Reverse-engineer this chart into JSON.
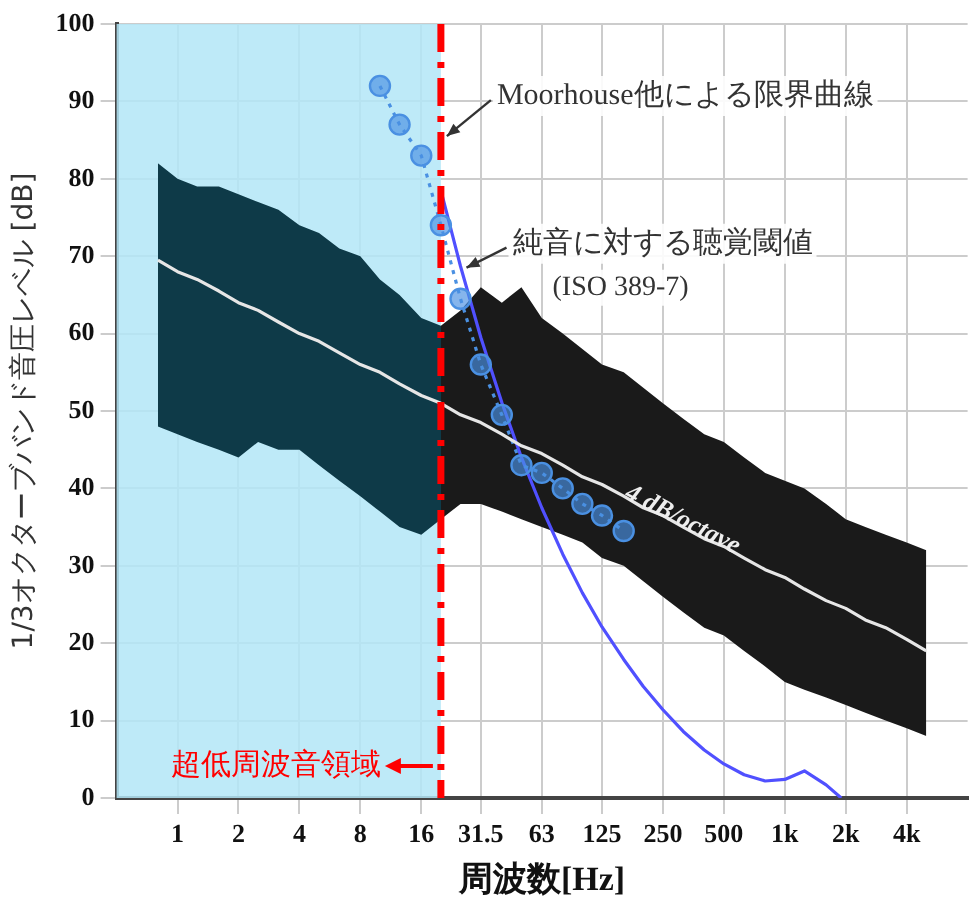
{
  "chart_data": {
    "type": "line",
    "xlabel": "周波数[Hz]",
    "ylabel": "1/3オクターブバンド音圧レベル [dB]",
    "xlim": [
      0.5,
      8000
    ],
    "ylim": [
      0,
      100
    ],
    "log": "x",
    "xticks": [
      1,
      2,
      4,
      8,
      16,
      31.5,
      63,
      125,
      250,
      500,
      {
        "value": 1000,
        "label": "1k"
      },
      {
        "value": 2000,
        "label": "2k"
      },
      {
        "value": 4000,
        "label": "4k"
      }
    ],
    "yticks": [
      0,
      10,
      20,
      30,
      40,
      50,
      60,
      70,
      80,
      90,
      100
    ],
    "grid": true,
    "legend": false,
    "series": [
      {
        "color": "#e6e6e6",
        "x": [
          0.8,
          1,
          1.25,
          1.6,
          2,
          2.5,
          3.15,
          4,
          5,
          6.3,
          8,
          10,
          12.5,
          16,
          20,
          25,
          31.5,
          40,
          50,
          63,
          80,
          100,
          125,
          160,
          200,
          250,
          315,
          400,
          500,
          630,
          800,
          1000,
          1250,
          1600,
          2000,
          2500,
          3150,
          4000,
          5000
        ],
        "values": [
          69.5,
          68,
          67,
          65.5,
          64,
          63,
          61.5,
          60,
          59,
          57.5,
          56,
          55,
          53.5,
          52,
          51,
          49.5,
          48.5,
          47,
          45.5,
          44.5,
          43,
          41.5,
          40.5,
          39,
          37.5,
          36.5,
          35,
          33.5,
          32.5,
          31,
          29.5,
          28.5,
          27,
          25.5,
          24.5,
          23,
          22,
          20.5,
          19
        ],
        "lower": [
          48,
          47,
          46,
          45,
          44,
          46,
          45,
          45,
          43,
          41,
          39,
          37,
          35,
          34,
          36,
          38,
          38,
          37,
          36,
          35,
          34,
          33,
          31,
          30,
          28,
          26,
          24,
          22,
          21,
          19,
          17,
          15,
          14,
          13,
          12,
          11,
          10,
          9,
          8
        ],
        "upper": [
          82,
          80,
          79,
          79,
          78,
          77,
          76,
          74,
          73,
          71,
          70,
          67,
          65,
          62,
          61,
          63,
          66,
          64,
          66,
          62,
          60,
          58,
          56,
          55,
          53,
          51,
          49,
          47,
          46,
          44,
          42,
          41,
          40,
          38,
          36,
          35,
          34,
          33,
          32
        ],
        "marker": "none",
        "line_style": "solid"
      },
      {
        "color": "#4a90e2",
        "x": [
          10,
          12.5,
          16,
          20,
          25,
          31.5,
          40,
          50,
          63,
          80,
          100,
          125,
          160
        ],
        "values": [
          92,
          87,
          83,
          74,
          64.5,
          56,
          49.5,
          43,
          42,
          40,
          38,
          36.5,
          34.5
        ],
        "marker": "circle",
        "line_style": "dotted"
      },
      {
        "color": "#5050ff",
        "x": [
          20,
          25,
          31.5,
          40,
          50,
          63,
          80,
          100,
          125,
          160,
          200,
          250,
          315,
          400,
          500,
          630,
          800,
          1000,
          1250,
          1600,
          1900
        ],
        "values": [
          78.5,
          68.7,
          59.5,
          51.1,
          44,
          37.5,
          31.5,
          26.5,
          22.1,
          17.9,
          14.4,
          11.4,
          8.6,
          6.2,
          4.4,
          3,
          2.2,
          2.4,
          3.5,
          1.7,
          0
        ],
        "marker": "none",
        "line_style": "solid"
      }
    ],
    "ref_lines": [
      {
        "axis": "x",
        "value": 20,
        "color": "#ff0000",
        "line_style": "dashed"
      }
    ],
    "bands": [
      {
        "axis": "x",
        "from": 0.5,
        "to": 20,
        "color": "#b3e6f7",
        "label": "超低周波音領域"
      }
    ],
    "annotations": [
      {
        "text": "Moorhouse他による限界曲線",
        "x": 20,
        "y": 85
      },
      {
        "text": "純音に対する聴覚閾値",
        "x": 25,
        "y": 68
      },
      "(ISO 389-7)",
      {
        "text": "4 dB/octave",
        "x": 300,
        "y": 35
      }
    ]
  }
}
